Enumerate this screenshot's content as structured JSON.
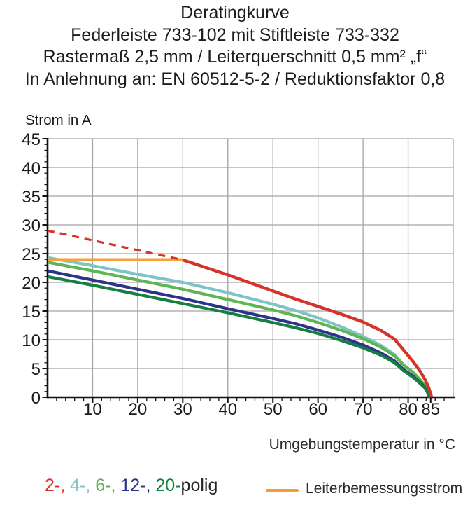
{
  "title": {
    "line1": "Deratingkurve",
    "line2": "Federleiste 733-102 mit Stiftleiste 733-332",
    "line3": "Rastermaß 2,5 mm / Leiterquerschnitt 0,5 mm² „f“",
    "line4": "In Anlehnung an: EN 60512-5-2 / Reduktionsfaktor 0,8"
  },
  "chart_data": {
    "type": "line",
    "title": "Deratingkurve",
    "xlabel": "Umgebungstemperatur in °C",
    "ylabel": "Strom in A",
    "xlim": [
      0,
      90
    ],
    "ylim": [
      0,
      45
    ],
    "x_major_ticks": [
      10,
      20,
      30,
      40,
      50,
      60,
      70,
      80,
      85
    ],
    "y_major_ticks": [
      0,
      5,
      10,
      15,
      20,
      25,
      30,
      35,
      40,
      45
    ],
    "x_gridlines": [
      10,
      20,
      30,
      40,
      50,
      60,
      70,
      80,
      90
    ],
    "y_gridlines": [
      5,
      10,
      15,
      20,
      25,
      30,
      35,
      40,
      45
    ],
    "x_minor_tick_step": 2,
    "y_minor_tick_step": 1,
    "grid": true,
    "legend_position": "bottom",
    "colors": {
      "grid": "#a3a3a3",
      "axis": "#111111",
      "tick_text": "#1a1a1a"
    },
    "series": [
      {
        "id": "2-polig-gestrichelt",
        "name": "2-polig (über Leiterbemessungsstrom)",
        "color": "#d6332c",
        "style": "dashed",
        "width": 3.2,
        "points": [
          [
            0,
            29
          ],
          [
            10,
            27.3
          ],
          [
            20,
            25.6
          ],
          [
            30,
            23.9
          ]
        ]
      },
      {
        "id": "2-polig",
        "name": "2-polig",
        "color": "#d6332c",
        "style": "solid",
        "width": 4.4,
        "points": [
          [
            30,
            23.9
          ],
          [
            35,
            22.6
          ],
          [
            40,
            21.3
          ],
          [
            45,
            19.9
          ],
          [
            50,
            18.5
          ],
          [
            55,
            17.1
          ],
          [
            60,
            15.8
          ],
          [
            65,
            14.5
          ],
          [
            70,
            13.1
          ],
          [
            74,
            11.6
          ],
          [
            77,
            10.1
          ],
          [
            79,
            8.2
          ],
          [
            81,
            6.3
          ],
          [
            82.5,
            4.7
          ],
          [
            83.8,
            3.0
          ],
          [
            84.6,
            1.6
          ],
          [
            85.2,
            0
          ]
        ]
      },
      {
        "id": "4-polig",
        "name": "4-polig",
        "color": "#7ec4c6",
        "style": "solid",
        "width": 4.2,
        "points": [
          [
            0,
            24.3
          ],
          [
            10,
            22.9
          ],
          [
            20,
            21.4
          ],
          [
            30,
            20.0
          ],
          [
            40,
            18.2
          ],
          [
            50,
            16.2
          ],
          [
            55,
            15.1
          ],
          [
            60,
            13.8
          ],
          [
            65,
            12.3
          ],
          [
            70,
            10.6
          ],
          [
            74,
            9.0
          ],
          [
            77,
            7.4
          ],
          [
            79,
            5.6
          ],
          [
            81,
            4.3
          ],
          [
            82.5,
            3.1
          ],
          [
            84,
            1.7
          ],
          [
            84.9,
            0
          ]
        ]
      },
      {
        "id": "6-polig",
        "name": "6-polig",
        "color": "#5db553",
        "style": "solid",
        "width": 4.2,
        "points": [
          [
            0,
            23.5
          ],
          [
            10,
            22.0
          ],
          [
            20,
            20.4
          ],
          [
            30,
            18.8
          ],
          [
            40,
            17.0
          ],
          [
            50,
            15.2
          ],
          [
            55,
            14.2
          ],
          [
            60,
            13.0
          ],
          [
            65,
            11.7
          ],
          [
            70,
            10.2
          ],
          [
            74,
            8.7
          ],
          [
            77,
            7.2
          ],
          [
            79,
            5.6
          ],
          [
            81,
            4.4
          ],
          [
            82.5,
            3.2
          ],
          [
            84,
            1.8
          ],
          [
            84.9,
            0
          ]
        ]
      },
      {
        "id": "12-polig",
        "name": "12-polig",
        "color": "#2e3387",
        "style": "solid",
        "width": 4.2,
        "points": [
          [
            0,
            22.0
          ],
          [
            10,
            20.4
          ],
          [
            20,
            18.8
          ],
          [
            30,
            17.2
          ],
          [
            40,
            15.4
          ],
          [
            50,
            13.7
          ],
          [
            55,
            12.8
          ],
          [
            60,
            11.7
          ],
          [
            65,
            10.5
          ],
          [
            70,
            9.1
          ],
          [
            74,
            7.7
          ],
          [
            77,
            6.3
          ],
          [
            79,
            4.8
          ],
          [
            81,
            3.7
          ],
          [
            82.5,
            2.7
          ],
          [
            84,
            1.5
          ],
          [
            84.8,
            0
          ]
        ]
      },
      {
        "id": "20-polig",
        "name": "20-polig",
        "color": "#157f42",
        "style": "solid",
        "width": 4.2,
        "points": [
          [
            0,
            21.0
          ],
          [
            10,
            19.5
          ],
          [
            20,
            17.9
          ],
          [
            30,
            16.3
          ],
          [
            40,
            14.7
          ],
          [
            50,
            13.0
          ],
          [
            55,
            12.1
          ],
          [
            60,
            11.1
          ],
          [
            65,
            9.9
          ],
          [
            70,
            8.6
          ],
          [
            74,
            7.3
          ],
          [
            77,
            6.0
          ],
          [
            79,
            4.6
          ],
          [
            81,
            3.5
          ],
          [
            82.5,
            2.5
          ],
          [
            84,
            1.4
          ],
          [
            84.7,
            0
          ]
        ]
      },
      {
        "id": "leiterbemessungsstrom",
        "name": "Leiterbemessungsstrom",
        "color": "#f5a03c",
        "style": "solid",
        "width": 3.5,
        "points": [
          [
            0,
            24
          ],
          [
            30,
            24
          ]
        ]
      }
    ],
    "draw_order": [
      "4-polig",
      "6-polig",
      "12-polig",
      "20-polig",
      "leiterbemessungsstrom",
      "2-polig-gestrichelt",
      "2-polig"
    ]
  },
  "legend": {
    "poles": [
      {
        "text": "2-, ",
        "color": "#d6332c"
      },
      {
        "text": "4-, ",
        "color": "#7ec4c6"
      },
      {
        "text": "6-, ",
        "color": "#5db553"
      },
      {
        "text": "12-, ",
        "color": "#2e3387"
      },
      {
        "text": "20-",
        "color": "#157f42"
      },
      {
        "text": "polig",
        "color": "#262626"
      }
    ],
    "rated": {
      "label": "Leiterbemessungsstrom",
      "color": "#ef9d38"
    }
  }
}
